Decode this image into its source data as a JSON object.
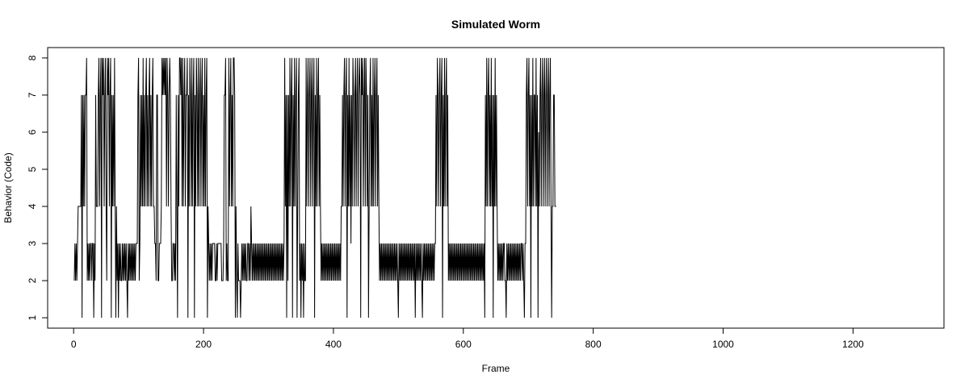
{
  "chart_data": {
    "type": "line",
    "title": "Simulated Worm",
    "xlabel": "Frame",
    "ylabel": "Behavior (Code)",
    "xlim": [
      -40,
      1340
    ],
    "ylim": [
      0.72,
      8.28
    ],
    "x_ticks": [
      0,
      200,
      400,
      600,
      800,
      1000,
      1200
    ],
    "y_ticks": [
      1,
      2,
      3,
      4,
      5,
      6,
      7,
      8
    ],
    "grid": false,
    "legend": "none",
    "line_color": "#000000",
    "x_start": 1,
    "series": [
      {
        "values": [
          2,
          3,
          2,
          3,
          2,
          3,
          4,
          4,
          4,
          4,
          4,
          7,
          1,
          7,
          4,
          7,
          4,
          7,
          7,
          8,
          2,
          3,
          2,
          3,
          2,
          3,
          3,
          2,
          3,
          3,
          1,
          3,
          2,
          7,
          4,
          4,
          4,
          7,
          8,
          4,
          7,
          8,
          1,
          8,
          7,
          8,
          4,
          7,
          8,
          4,
          2,
          8,
          7,
          8,
          4,
          7,
          8,
          1,
          7,
          4,
          7,
          4,
          8,
          4,
          1,
          4,
          2,
          3,
          1,
          3,
          2,
          3,
          2,
          2,
          3,
          2,
          3,
          2,
          3,
          2,
          3,
          2,
          1,
          3,
          2,
          3,
          2,
          3,
          2,
          3,
          2,
          3,
          2,
          3,
          2,
          3,
          3,
          3,
          7,
          8,
          2,
          3,
          7,
          4,
          7,
          4,
          8,
          4,
          7,
          4,
          7,
          8,
          4,
          7,
          4,
          7,
          8,
          4,
          7,
          4,
          7,
          8,
          4,
          4,
          3,
          3,
          2,
          7,
          7,
          2,
          2,
          3,
          3,
          3,
          4,
          8,
          7,
          8,
          7,
          8,
          7,
          8,
          4,
          8,
          7,
          4,
          7,
          8,
          7,
          4,
          2,
          2,
          3,
          3,
          2,
          3,
          2,
          7,
          4,
          1,
          7,
          4,
          8,
          8,
          7,
          8,
          4,
          8,
          4,
          7,
          8,
          4,
          7,
          7,
          8,
          1,
          7,
          4,
          8,
          7,
          4,
          8,
          4,
          7,
          8,
          1,
          7,
          4,
          8,
          7,
          4,
          8,
          4,
          7,
          8,
          4,
          7,
          8,
          4,
          7,
          4,
          8,
          4,
          7,
          8,
          1,
          4,
          3,
          2,
          3,
          2,
          3,
          2,
          3,
          3,
          3,
          3,
          2,
          2,
          3,
          2,
          3,
          3,
          3,
          3,
          3,
          3,
          2,
          2,
          2,
          3,
          7,
          7,
          8,
          2,
          3,
          2,
          2,
          8,
          4,
          7,
          8,
          4,
          7,
          4,
          8,
          8,
          7,
          1,
          4,
          2,
          1,
          3,
          2,
          2,
          2,
          1,
          2,
          3,
          2,
          3,
          2,
          3,
          2,
          3,
          2,
          2,
          3,
          3,
          2,
          3,
          2,
          4,
          3,
          2,
          3,
          2,
          3,
          2,
          3,
          2,
          3,
          2,
          3,
          2,
          3,
          2,
          3,
          2,
          3,
          2,
          3,
          2,
          3,
          2,
          3,
          2,
          3,
          2,
          3,
          2,
          3,
          2,
          3,
          2,
          3,
          2,
          3,
          2,
          3,
          2,
          3,
          2,
          3,
          2,
          3,
          2,
          3,
          2,
          3,
          2,
          3,
          2,
          3,
          8,
          4,
          7,
          1,
          7,
          2,
          7,
          4,
          8,
          4,
          7,
          8,
          1,
          7,
          4,
          8,
          4,
          7,
          8,
          1,
          4,
          7,
          8,
          2,
          3,
          1,
          3,
          2,
          3,
          1,
          3,
          2,
          2,
          8,
          4,
          7,
          8,
          4,
          7,
          8,
          4,
          7,
          8,
          4,
          7,
          8,
          1,
          7,
          4,
          8,
          4,
          7,
          8,
          4,
          7,
          4,
          2,
          3,
          2,
          3,
          2,
          3,
          2,
          3,
          2,
          3,
          2,
          3,
          2,
          3,
          2,
          3,
          2,
          3,
          2,
          3,
          2,
          3,
          2,
          3,
          2,
          3,
          2,
          3,
          2,
          3,
          2,
          4,
          4,
          7,
          4,
          7,
          8,
          4,
          7,
          8,
          1,
          7,
          4,
          8,
          4,
          7,
          3,
          7,
          4,
          8,
          7,
          4,
          7,
          8,
          4,
          7,
          8,
          4,
          7,
          8,
          7,
          1,
          8,
          7,
          8,
          4,
          7,
          8,
          4,
          8,
          7,
          4,
          7,
          1,
          4,
          7,
          8,
          4,
          7,
          4,
          8,
          4,
          7,
          8,
          4,
          7,
          8,
          4,
          7,
          4,
          2,
          3,
          2,
          3,
          2,
          3,
          2,
          3,
          2,
          3,
          2,
          3,
          2,
          3,
          2,
          3,
          2,
          3,
          2,
          3,
          2,
          3,
          2,
          3,
          2,
          3,
          2,
          3,
          2,
          1,
          3,
          2,
          3,
          2,
          3,
          2,
          3,
          2,
          3,
          2,
          3,
          2,
          3,
          2,
          3,
          2,
          3,
          2,
          3,
          2,
          3,
          2,
          3,
          2,
          3,
          1,
          3,
          2,
          3,
          2,
          3,
          2,
          3,
          2,
          3,
          2,
          1,
          3,
          2,
          3,
          2,
          3,
          2,
          3,
          2,
          3,
          2,
          3,
          2,
          3,
          2,
          3,
          2,
          3,
          2,
          3,
          3,
          7,
          4,
          8,
          7,
          4,
          7,
          8,
          4,
          7,
          8,
          1,
          7,
          4,
          8,
          4,
          7,
          8,
          4,
          7,
          2,
          3,
          2,
          3,
          2,
          3,
          2,
          3,
          2,
          3,
          2,
          3,
          2,
          3,
          2,
          3,
          2,
          3,
          2,
          3,
          2,
          3,
          2,
          3,
          2,
          3,
          2,
          3,
          2,
          3,
          2,
          3,
          2,
          3,
          2,
          3,
          2,
          3,
          2,
          3,
          2,
          3,
          2,
          3,
          2,
          3,
          2,
          3,
          2,
          3,
          2,
          3,
          2,
          3,
          2,
          3,
          1,
          7,
          4,
          8,
          4,
          7,
          8,
          4,
          7,
          4,
          8,
          4,
          7,
          1,
          7,
          4,
          8,
          4,
          7,
          4,
          2,
          3,
          2,
          3,
          2,
          3,
          2,
          3,
          2,
          3,
          3,
          2,
          2,
          1,
          3,
          2,
          3,
          2,
          3,
          2,
          3,
          2,
          3,
          2,
          3,
          2,
          3,
          2,
          3,
          2,
          3,
          2,
          3,
          2,
          3,
          2,
          3,
          3,
          2,
          3,
          2,
          1,
          3,
          3,
          7,
          8,
          4,
          7,
          8,
          4,
          7,
          1,
          7,
          4,
          8,
          4,
          7,
          7,
          4,
          8,
          4,
          7,
          1,
          6,
          4,
          7,
          8,
          4,
          7,
          8,
          4,
          7,
          8,
          4,
          7,
          8,
          4,
          7,
          8,
          4,
          7,
          8,
          4,
          1,
          4,
          4,
          7,
          7,
          4,
          4,
          4
        ]
      }
    ]
  }
}
